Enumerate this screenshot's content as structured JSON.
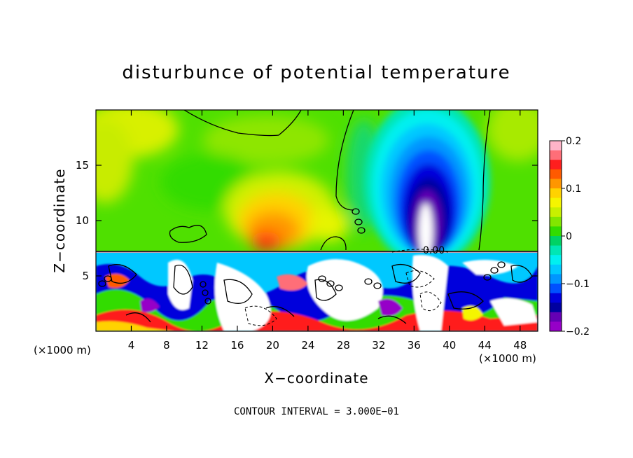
{
  "chart_data": {
    "type": "heatmap",
    "title": "disturbunce of potential temperature",
    "xlabel": "X−coordinate",
    "ylabel": "Z−coordinate",
    "x_unit": "(×1000 m)",
    "xlim": [
      0,
      50
    ],
    "ylim": [
      0,
      20
    ],
    "x_ticks": [
      4,
      8,
      12,
      16,
      20,
      24,
      28,
      32,
      36,
      40,
      44,
      48
    ],
    "y_ticks": [
      5,
      10,
      15
    ],
    "colorbar": {
      "range": [
        -0.2,
        0.2
      ],
      "ticks": [
        "0.2",
        "0.1",
        "0",
        "−0.1",
        "−0.2"
      ],
      "colors": [
        "#ffb4c8",
        "#ff6e78",
        "#ff1e1e",
        "#ff5a00",
        "#ff9600",
        "#ffd200",
        "#f5f500",
        "#c8f000",
        "#82e600",
        "#32dc00",
        "#00d264",
        "#00e6b4",
        "#00f0f0",
        "#00c8ff",
        "#0096ff",
        "#0050ff",
        "#0000dc",
        "#0000a0",
        "#6400b4",
        "#9600c8"
      ]
    },
    "contour_label": "0.00",
    "contour_interval": "CONTOUR INTERVAL = 3.000E−01",
    "grid": false,
    "features": [
      {
        "name": "warm-plume",
        "x": 20,
        "z": 10,
        "value": 0.12
      },
      {
        "name": "cold-plume",
        "x": 37,
        "z": 12,
        "value": -0.2
      },
      {
        "name": "turbulent-layer",
        "z_range": [
          0,
          7.3
        ]
      }
    ]
  }
}
